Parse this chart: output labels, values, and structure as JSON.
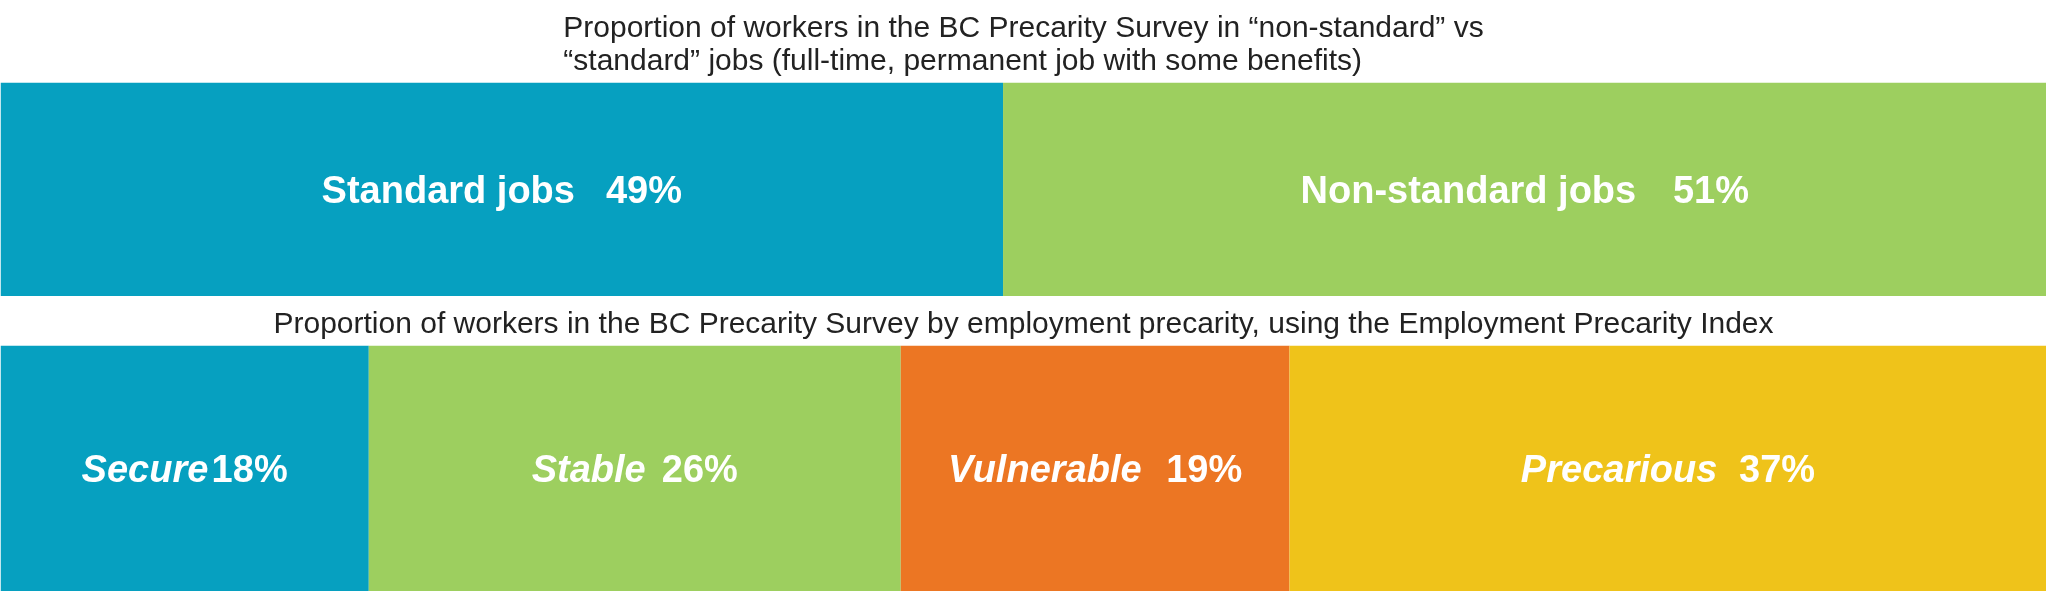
{
  "chart_data": [
    {
      "type": "bar",
      "orientation": "horizontal",
      "stacked": true,
      "title": "Proportion of workers in the BC Precarity Survey in “non-standard” vs\n“standard” jobs (full-time, permanent job with some benefits)",
      "categories": [
        null
      ],
      "legend": false,
      "tick_labels": false,
      "grid": false,
      "series": [
        {
          "name": "Standard jobs",
          "color": "#06a0c0",
          "values": [
            49
          ],
          "value_labels": [
            "49%"
          ]
        },
        {
          "name": "Non-standard jobs",
          "color": "#9dcf5f",
          "values": [
            51
          ],
          "value_labels": [
            "51%"
          ]
        }
      ]
    },
    {
      "type": "bar",
      "orientation": "horizontal",
      "stacked": true,
      "title": "Proportion of workers in the BC Precarity Survey by employment precarity, using the Employment Precarity Index",
      "categories": [
        null
      ],
      "legend": false,
      "tick_labels": false,
      "grid": false,
      "series": [
        {
          "name": "Secure",
          "color": "#06a0c0",
          "values": [
            18
          ],
          "value_labels": [
            "18%"
          ]
        },
        {
          "name": "Stable",
          "color": "#9dcf5f",
          "values": [
            26
          ],
          "value_labels": [
            "26%"
          ]
        },
        {
          "name": "Vulnerable",
          "color": "#ec7623",
          "values": [
            19
          ],
          "value_labels": [
            "19%"
          ]
        },
        {
          "name": "Precarious",
          "color": "#efc31a",
          "values": [
            37
          ],
          "value_labels": [
            "37%"
          ]
        }
      ]
    }
  ]
}
